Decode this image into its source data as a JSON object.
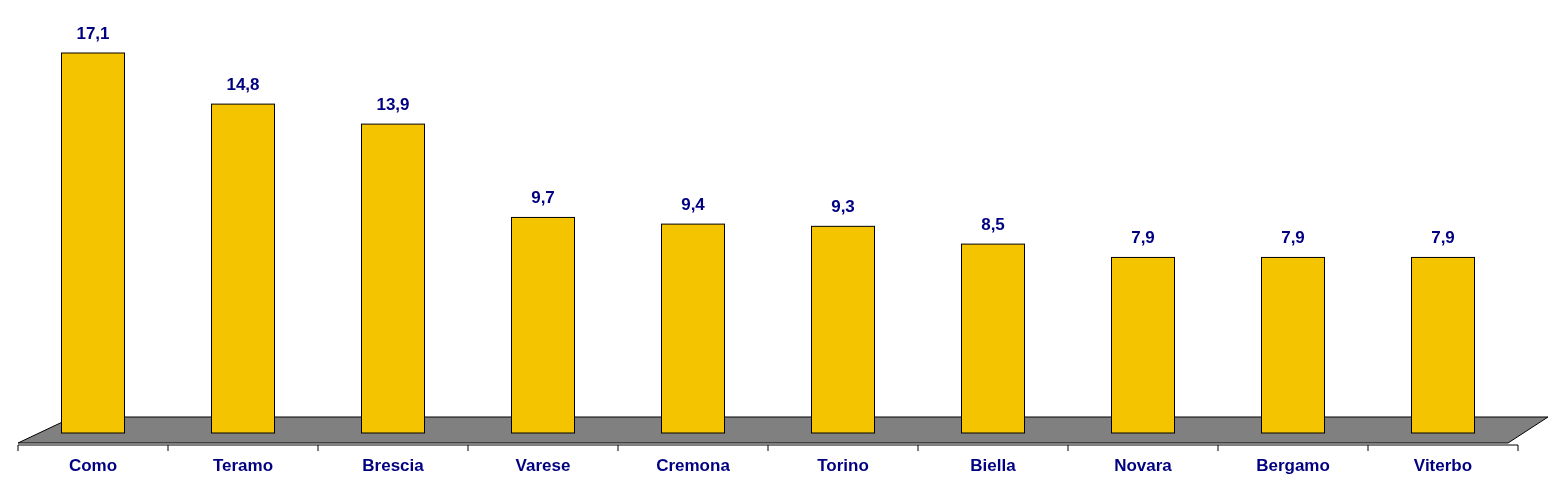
{
  "chart_data": {
    "type": "bar",
    "categories": [
      "Como",
      "Teramo",
      "Brescia",
      "Varese",
      "Cremona",
      "Torino",
      "Biella",
      "Novara",
      "Bergamo",
      "Viterbo"
    ],
    "values": [
      17.1,
      14.8,
      13.9,
      9.7,
      9.4,
      9.3,
      8.5,
      7.9,
      7.9,
      7.9
    ],
    "value_labels": [
      "17,1",
      "14,8",
      "13,9",
      "9,7",
      "9,4",
      "9,3",
      "8,5",
      "7,9",
      "7,9",
      "7,9"
    ],
    "color": "#f5c400"
  }
}
